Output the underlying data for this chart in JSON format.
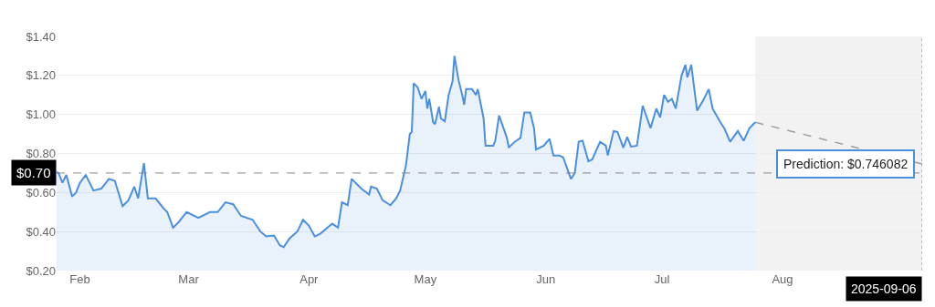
{
  "chart_data": {
    "type": "area",
    "series": [
      {
        "color": "#4a8fe0",
        "x": [
          "2025-01-26",
          "2025-01-26T12:00",
          "2025-01-27T12:00",
          "2025-01-28T12:00",
          "2025-01-30",
          "2025-01-31",
          "2025-02-01",
          "2025-02-02T12:00",
          "2025-02-04T12:00",
          "2025-02-06T12:00",
          "2025-02-08T12:00",
          "2025-02-10",
          "2025-02-12",
          "2025-02-13T12:00",
          "2025-02-15",
          "2025-02-16",
          "2025-02-17T12:00",
          "2025-02-18T12:00",
          "2025-02-20T12:00",
          "2025-02-22T12:00",
          "2025-02-23T12:00",
          "2025-02-25",
          "2025-02-26T12:00",
          "2025-02-28T12:00",
          "2025-03-03T12:00",
          "2025-03-06T12:00",
          "2025-03-08T12:00",
          "2025-03-10T12:00",
          "2025-03-12T12:00",
          "2025-03-14T12:00",
          "2025-03-17T12:00",
          "2025-03-19T12:00",
          "2025-03-21",
          "2025-03-23",
          "2025-03-24T12:00",
          "2025-03-25T12:00",
          "2025-03-27",
          "2025-03-29",
          "2025-03-30T12:00",
          "2025-04-01",
          "2025-04-02T12:00",
          "2025-04-04",
          "2025-04-07",
          "2025-04-08T12:00",
          "2025-04-09T12:00",
          "2025-04-11",
          "2025-04-12",
          "2025-04-14T12:00",
          "2025-04-16T12:00",
          "2025-04-17",
          "2025-04-18T12:00",
          "2025-04-20",
          "2025-04-22",
          "2025-04-23T12:00",
          "2025-04-24T12:00",
          "2025-04-26",
          "2025-04-27",
          "2025-04-27T12:00",
          "2025-04-28",
          "2025-04-29",
          "2025-04-30",
          "2025-05-01",
          "2025-05-01T12:00",
          "2025-05-02",
          "2025-05-03",
          "2025-05-03T12:00",
          "2025-05-04T12:00",
          "2025-05-05",
          "2025-05-06",
          "2025-05-07",
          "2025-05-08",
          "2025-05-08T12:00",
          "2025-05-09T12:00",
          "2025-05-10T12:00",
          "2025-05-11",
          "2025-05-11T12:00",
          "2025-05-13",
          "2025-05-14",
          "2025-05-14T12:00",
          "2025-05-16",
          "2025-05-16T12:00",
          "2025-05-18T12:00",
          "2025-05-19",
          "2025-05-20",
          "2025-05-22",
          "2025-05-22T12:00",
          "2025-05-24",
          "2025-05-25T12:00",
          "2025-05-26T12:00",
          "2025-05-28",
          "2025-05-29",
          "2025-05-29T12:00",
          "2025-05-31T12:00",
          "2025-06-02",
          "2025-06-03",
          "2025-06-04T12:00",
          "2025-06-05T12:00",
          "2025-06-07T12:00",
          "2025-06-08T12:00",
          "2025-06-09T12:00",
          "2025-06-10T12:00",
          "2025-06-12",
          "2025-06-13",
          "2025-06-15",
          "2025-06-16T12:00",
          "2025-06-17",
          "2025-06-18T12:00",
          "2025-06-19T12:00",
          "2025-06-21",
          "2025-06-22",
          "2025-06-23",
          "2025-06-24T12:00",
          "2025-06-26",
          "2025-06-28",
          "2025-06-29T12:00",
          "2025-06-30T12:00",
          "2025-07-01T12:00",
          "2025-07-02T12:00",
          "2025-07-03T12:00",
          "2025-07-04T12:00",
          "2025-07-06",
          "2025-07-07",
          "2025-07-07T12:00",
          "2025-07-08T12:00",
          "2025-07-10",
          "2025-07-11T12:00",
          "2025-07-13",
          "2025-07-14",
          "2025-07-16",
          "2025-07-17",
          "2025-07-18T12:00",
          "2025-07-20T12:00",
          "2025-07-22",
          "2025-07-23T12:00",
          "2025-07-25"
        ],
        "values": [
          0.705,
          0.7,
          0.65,
          0.69,
          0.58,
          0.6,
          0.65,
          0.69,
          0.61,
          0.62,
          0.67,
          0.66,
          0.53,
          0.56,
          0.63,
          0.57,
          0.75,
          0.57,
          0.57,
          0.52,
          0.5,
          0.42,
          0.45,
          0.5,
          0.47,
          0.5,
          0.5,
          0.55,
          0.54,
          0.48,
          0.46,
          0.4,
          0.375,
          0.38,
          0.33,
          0.32,
          0.365,
          0.4,
          0.46,
          0.43,
          0.375,
          0.39,
          0.44,
          0.42,
          0.55,
          0.535,
          0.67,
          0.62,
          0.59,
          0.63,
          0.62,
          0.56,
          0.535,
          0.57,
          0.61,
          0.74,
          0.9,
          0.91,
          1.16,
          1.14,
          1.08,
          1.12,
          1.03,
          1.08,
          0.96,
          0.95,
          1.04,
          0.98,
          0.965,
          1.1,
          1.17,
          1.3,
          1.18,
          1.1,
          1.05,
          1.13,
          1.13,
          1.1,
          1.13,
          0.98,
          0.84,
          0.84,
          0.865,
          0.995,
          0.88,
          0.83,
          0.86,
          0.88,
          1.01,
          1.01,
          0.93,
          0.82,
          0.84,
          0.875,
          0.79,
          0.79,
          0.78,
          0.67,
          0.7,
          0.86,
          0.865,
          0.76,
          0.77,
          0.86,
          0.84,
          0.79,
          0.915,
          0.91,
          0.83,
          0.885,
          0.835,
          0.84,
          1.045,
          0.93,
          1.03,
          0.985,
          1.1,
          1.065,
          1.08,
          1.03,
          1.2,
          1.255,
          1.19,
          1.255,
          1.02,
          1.07,
          1.13,
          1.03,
          0.96,
          0.93,
          0.86,
          0.915,
          0.865,
          0.93,
          0.96
        ]
      },
      {
        "type": "line",
        "color": "#9e9e9e",
        "line_style": "dashed",
        "x": [
          "2025-07-25",
          "2025-09-06"
        ],
        "values": [
          0.96,
          0.746082
        ]
      }
    ],
    "xlim": [
      "2025-01-26",
      "2025-09-06"
    ],
    "xticks": [
      {
        "value": "2025-02-01",
        "label": "Feb"
      },
      {
        "value": "2025-03-01",
        "label": "Mar"
      },
      {
        "value": "2025-04-01",
        "label": "Apr"
      },
      {
        "value": "2025-05-01",
        "label": "May"
      },
      {
        "value": "2025-06-01",
        "label": "Jun"
      },
      {
        "value": "2025-07-01",
        "label": "Jul"
      },
      {
        "value": "2025-08-01",
        "label": "Aug"
      }
    ],
    "ylim": [
      0.2,
      1.4
    ],
    "yticks": [
      {
        "value": 0.2,
        "label": "$0.20"
      },
      {
        "value": 0.4,
        "label": "$0.40"
      },
      {
        "value": 0.6,
        "label": "$0.60"
      },
      {
        "value": 0.8,
        "label": "$0.80"
      },
      {
        "value": 1.0,
        "label": "$1.00"
      },
      {
        "value": 1.2,
        "label": "$1.20"
      },
      {
        "value": 1.4,
        "label": "$1.40"
      }
    ],
    "ref_lines": [
      {
        "axis": "y",
        "value": 0.7,
        "label": "$0.70",
        "color": "#888888",
        "line_style": "dashed"
      },
      {
        "axis": "x",
        "value": "2025-09-06",
        "label": "2025-09-06",
        "color": "#888888",
        "line_style": "dotted"
      }
    ],
    "bands": [
      {
        "axis": "x",
        "from": "2025-07-25",
        "to": "2025-09-06",
        "color": "#f2f2f2"
      }
    ],
    "annotations": [
      {
        "text": "Prediction: $0.746082",
        "x": "2025-09-06",
        "y": 0.746082
      }
    ],
    "grid": "y"
  }
}
